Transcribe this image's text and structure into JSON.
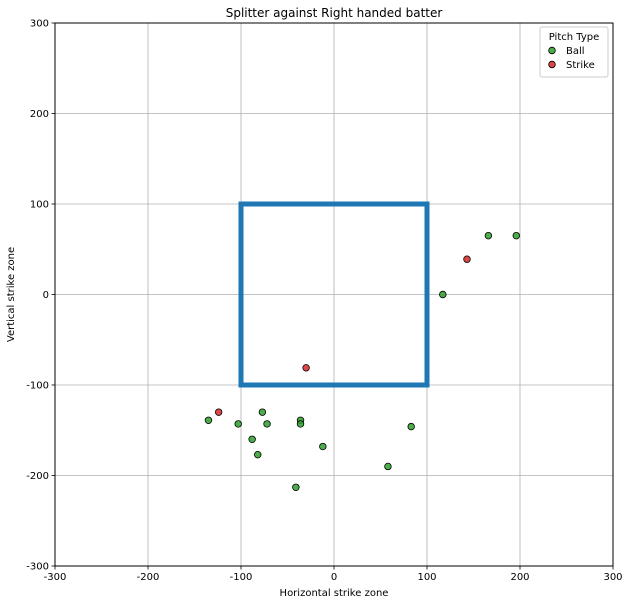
{
  "chart_data": {
    "type": "scatter",
    "title": "Splitter against Right handed batter",
    "xlabel": "Horizontal strike zone",
    "ylabel": "Vertical strike zone",
    "xlim": [
      -300,
      300
    ],
    "ylim": [
      -300,
      300
    ],
    "xticks": [
      -300,
      -200,
      -100,
      0,
      100,
      200,
      300
    ],
    "yticks": [
      -300,
      -200,
      -100,
      0,
      100,
      200,
      300
    ],
    "grid": true,
    "legend": {
      "title": "Pitch Type",
      "placement": "top-right"
    },
    "strike_zone": {
      "x": [
        -100,
        100
      ],
      "y": [
        -100,
        100
      ],
      "color": "#1f77b4"
    },
    "series": [
      {
        "name": "Ball",
        "color": "#2ca02c",
        "points": [
          [
            -135,
            -139
          ],
          [
            -103,
            -143
          ],
          [
            -88,
            -160
          ],
          [
            -82,
            -177
          ],
          [
            -77,
            -130
          ],
          [
            -72,
            -143
          ],
          [
            -41,
            -213
          ],
          [
            -36,
            -139
          ],
          [
            -36,
            -143
          ],
          [
            -12,
            -168
          ],
          [
            58,
            -190
          ],
          [
            83,
            -146
          ],
          [
            117,
            0
          ],
          [
            166,
            65
          ],
          [
            196,
            65
          ]
        ]
      },
      {
        "name": "Strike",
        "color": "#d62728",
        "points": [
          [
            -124,
            -130
          ],
          [
            -30,
            -81
          ],
          [
            143,
            39
          ]
        ]
      }
    ]
  }
}
